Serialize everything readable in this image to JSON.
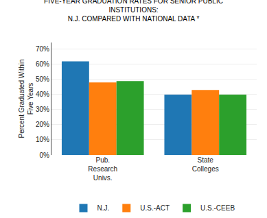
{
  "chart_data": {
    "type": "bar",
    "title": "FIVE-YEAR GRADUATION RATES FOR SENIOR PUBLIC\nINSTITUTIONS:\nN.J. COMPARED WITH NATIONAL DATA *",
    "categories": [
      "Pub.\nResearch\nUnivs.",
      "State\nColleges"
    ],
    "series": [
      {
        "name": "N.J.",
        "values": [
          62,
          40
        ]
      },
      {
        "name": "U.S.-ACT",
        "values": [
          48,
          43
        ]
      },
      {
        "name": "U.S.-CEEB",
        "values": [
          49,
          40
        ]
      }
    ],
    "ylabel": "Percent Graduated Within\nFive Years",
    "ylim": [
      0,
      74.5
    ],
    "yticks": [
      {
        "value": 0,
        "label": "0%"
      },
      {
        "value": 10,
        "label": "10%"
      },
      {
        "value": 20,
        "label": "20%"
      },
      {
        "value": 30,
        "label": "30%"
      },
      {
        "value": 40,
        "label": "40%"
      },
      {
        "value": 50,
        "label": "50%"
      },
      {
        "value": 60,
        "label": "60%"
      },
      {
        "value": 70,
        "label": "70%"
      }
    ],
    "grid": true,
    "legend": "bottom"
  }
}
